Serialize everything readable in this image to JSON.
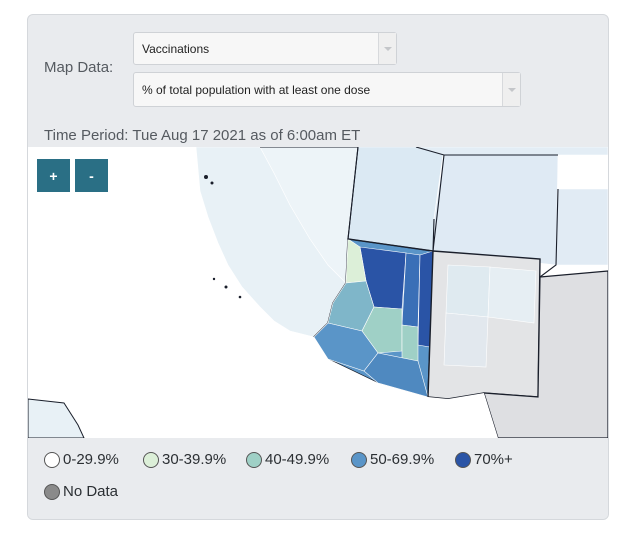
{
  "controls": {
    "map_data_label": "Map Data:",
    "dataset_select": "Vaccinations",
    "metric_select": "% of total population with at least one dose",
    "time_period": "Time Period: Tue Aug 17 2021 as of 6:00am ET"
  },
  "zoom": {
    "in_label": "+",
    "out_label": "-"
  },
  "legend": {
    "items": [
      {
        "label": "0-29.9%",
        "color": "#ffffff"
      },
      {
        "label": "30-39.9%",
        "color": "#dcefd8"
      },
      {
        "label": "40-49.9%",
        "color": "#9fd0c6"
      },
      {
        "label": "50-69.9%",
        "color": "#5a95c8"
      },
      {
        "label": "70%+",
        "color": "#2a54a6"
      },
      {
        "label": "No Data",
        "color": "#8a8a8a"
      }
    ]
  },
  "map_colors": {
    "no_data": "#e3e4e6",
    "tier_low": "#ecf3f8",
    "tier_30": "#dcefd8",
    "tier_40": "#9fd0c6",
    "tier_50": "#5a95c8",
    "tier_70": "#2a54a6"
  }
}
